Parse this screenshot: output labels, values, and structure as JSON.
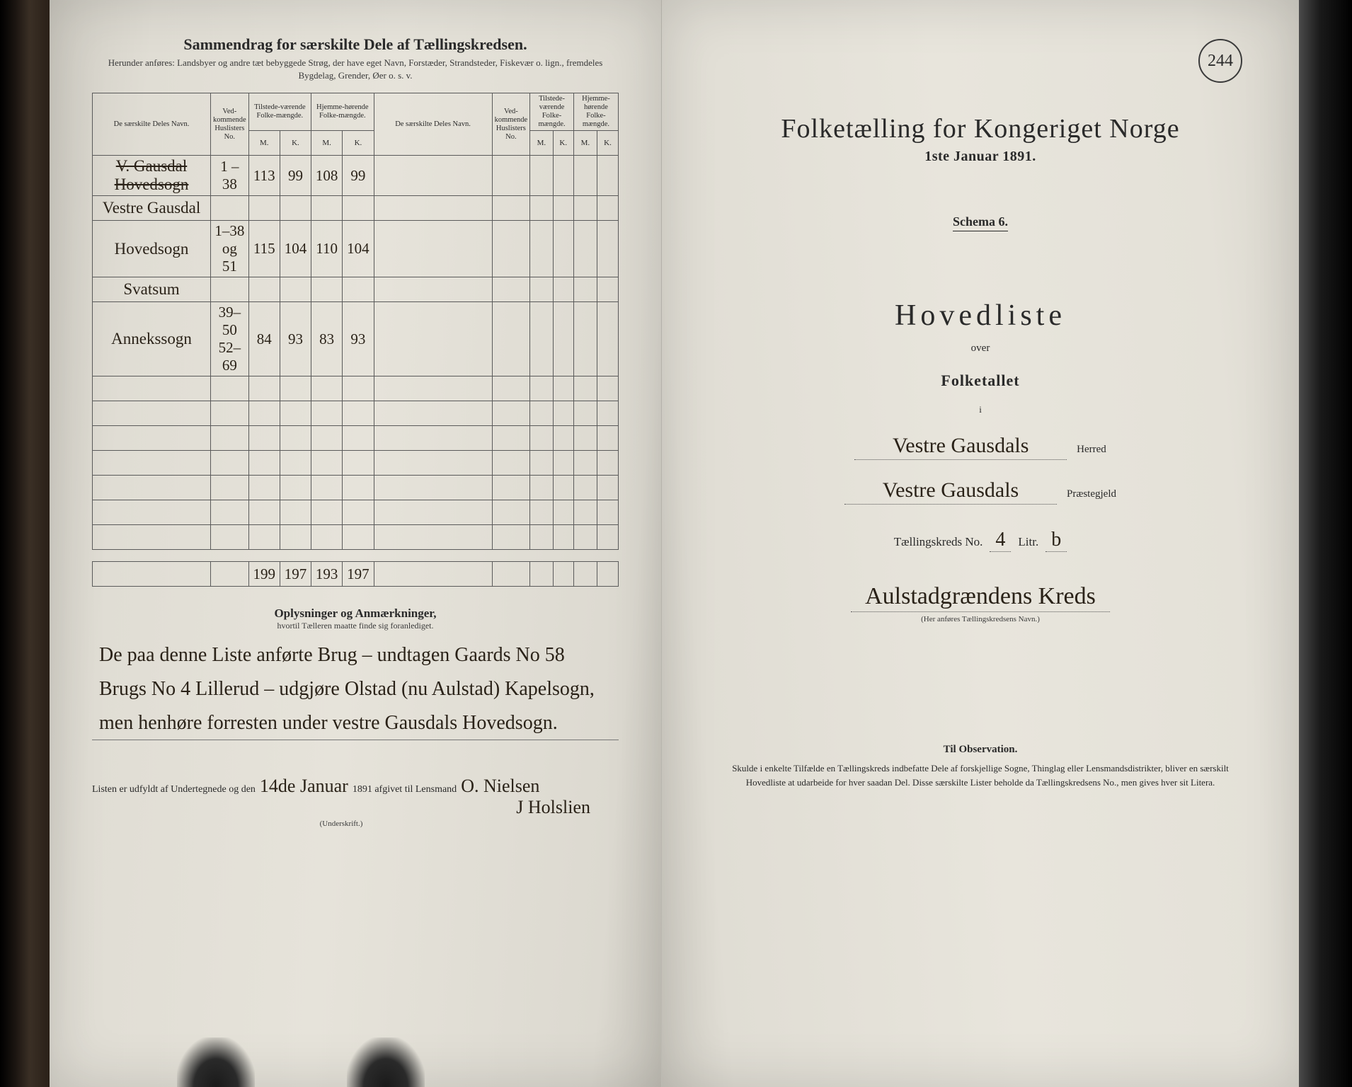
{
  "colors": {
    "paper": "#e6e3da",
    "ink_print": "#2a2a2a",
    "ink_hand": "#2a2218",
    "border": "#5a5a5a",
    "background": "#0a0a0a"
  },
  "typography": {
    "print_family": "Georgia, Times New Roman, serif",
    "hand_family": "Brush Script MT, Segoe Script, cursive",
    "title_size_pt": 22,
    "body_size_pt": 13,
    "hand_size_pt": 23
  },
  "left": {
    "title": "Sammendrag for særskilte Dele af Tællingskredsen.",
    "subtitle": "Herunder anføres: Landsbyer og andre tæt bebyggede Strøg, der have eget Navn, Forstæder, Strandsteder, Fiskevær o. lign., fremdeles Bygdelag, Grender, Øer o. s. v.",
    "table": {
      "columns": {
        "navn": "De særskilte Deles Navn.",
        "huslister": "Ved-kommende Huslisters No.",
        "tilstede": "Tilstede-værende Folke-mængde.",
        "hjemme": "Hjemme-hørende Folke-mængde.",
        "m": "M.",
        "k": "K."
      },
      "rows": [
        {
          "navn": "V. Gausdal Hovedsogn",
          "strike": true,
          "hus": "1 – 38",
          "tm": "113",
          "tk": "99",
          "hm": "108",
          "hk": "99"
        },
        {
          "navn": "Vestre Gausdal",
          "hus": "",
          "tm": "",
          "tk": "",
          "hm": "",
          "hk": ""
        },
        {
          "navn": "Hovedsogn",
          "hus": "1–38 og 51",
          "tm": "115",
          "tk": "104",
          "hm": "110",
          "hk": "104"
        },
        {
          "navn": "Svatsum",
          "hus": "",
          "tm": "",
          "tk": "",
          "hm": "",
          "hk": ""
        },
        {
          "navn": "Annekssogn",
          "hus": "39–50 52–69",
          "tm": "84",
          "tk": "93",
          "hm": "83",
          "hk": "93"
        }
      ],
      "empty_rows": 7,
      "totals": {
        "tm": "199",
        "tk": "197",
        "hm": "193",
        "hk": "197"
      }
    },
    "remarks": {
      "heading": "Oplysninger og Anmærkninger,",
      "sub": "hvortil Tælleren maatte finde sig foranlediget.",
      "body": "De paa denne Liste anførte Brug – undtagen Gaards No 58 Brugs No 4 Lillerud – udgjøre Olstad (nu Aulstad) Kapelsogn, men henhøre forresten under vestre Gausdals Hovedsogn."
    },
    "signature": {
      "prefix": "Listen er udfyldt af Undertegnede og den",
      "date": "14de Januar",
      "year_print": "1891 afgivet til Lensmand",
      "name1": "O. Nielsen",
      "name2": "J Holslien",
      "under": "(Underskrift.)"
    }
  },
  "right": {
    "stamp": "244",
    "title": "Folketælling for Kongeriget Norge",
    "date": "1ste Januar 1891.",
    "schema": "Schema 6.",
    "hoved": "Hovedliste",
    "over": "over",
    "folketallet": "Folketallet",
    "i": "i",
    "herred": {
      "value": "Vestre Gausdals",
      "label": "Herred"
    },
    "praestegjeld": {
      "value": "Vestre Gausdals",
      "label": "Præstegjeld"
    },
    "kreds": {
      "prefix": "Tællingskreds No.",
      "no": "4",
      "litr_lbl": "Litr.",
      "litr": "b"
    },
    "kredsname": "Aulstadgrændens Kreds",
    "kredsname_sub": "(Her anføres Tællingskredsens Navn.)",
    "obs": {
      "heading": "Til Observation.",
      "body": "Skulde i enkelte Tilfælde en Tællingskreds indbefatte Dele af forskjellige Sogne, Thinglag eller Lensmandsdistrikter, bliver en særskilt Hovedliste at udarbeide for hver saadan Del. Disse særskilte Lister beholde da Tællingskredsens No., men gives hver sit Litera."
    }
  }
}
